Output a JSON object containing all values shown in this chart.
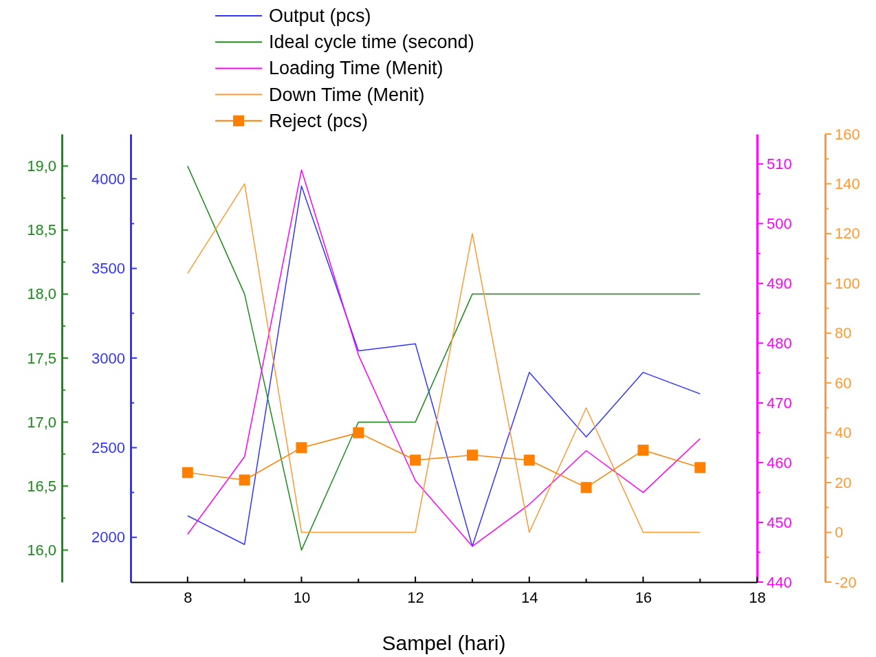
{
  "chart_data": [
    {
      "type": "line",
      "xlabel": "Sampel (hari)",
      "x": [
        8,
        9,
        10,
        11,
        12,
        13,
        14,
        15,
        16,
        17
      ],
      "xlim": [
        7,
        18
      ],
      "xticks": [
        8,
        10,
        12,
        14,
        16,
        18
      ],
      "ylim": [
        1750,
        4250
      ],
      "yticks": [
        2000,
        2500,
        3000,
        3500,
        4000
      ],
      "y2lim": [
        15.75,
        19.25
      ],
      "y2ticks": [
        {
          "value": 16,
          "label": "16,0"
        },
        {
          "value": 16.5,
          "label": "16,5"
        },
        {
          "value": 17,
          "label": "17,0"
        },
        {
          "value": 17.5,
          "label": "17,5"
        },
        {
          "value": 18,
          "label": "18,0"
        },
        {
          "value": 18.5,
          "label": "18,5"
        },
        {
          "value": 19,
          "label": "19,0"
        }
      ],
      "y3lim": [
        440,
        515
      ],
      "y3ticks": [
        440,
        450,
        460,
        470,
        480,
        490,
        500,
        510
      ],
      "legend": "top",
      "series": [
        {
          "name": "Output (pcs)",
          "color": "#3333ff",
          "marker": "none",
          "values": [
            2120,
            1960,
            3960,
            3040,
            3080,
            1950,
            2920,
            2560,
            2920,
            2800
          ]
        },
        {
          "name": "Ideal cycle time (second)",
          "color": "#1a8c1a",
          "axis": "y2",
          "marker": "none",
          "values": [
            19.0,
            18.0,
            16.0,
            17.0,
            17.0,
            18.0,
            18.0,
            18.0,
            18.0,
            18.0
          ]
        },
        {
          "name": "Loading Time (Menit)",
          "color": "#ff00ff",
          "axis": "y3",
          "marker": "none",
          "values": [
            448,
            461,
            509,
            478,
            457,
            446,
            453,
            462,
            455,
            464
          ]
        }
      ]
    },
    {
      "type": "line",
      "x": [
        8,
        9,
        10,
        11,
        12,
        13,
        14,
        15,
        16,
        17
      ],
      "xlim": [
        7,
        18
      ],
      "tick_labels": "y",
      "ylim": [
        -20,
        160
      ],
      "yticks": [
        -20,
        0,
        20,
        40,
        60,
        80,
        100,
        120,
        140,
        160
      ],
      "legend": "top",
      "series": [
        {
          "name": "Down Time (Menit)",
          "color": "#ff9933",
          "marker": "none",
          "values": [
            104,
            140,
            0,
            0,
            0,
            120,
            0,
            50,
            0,
            0
          ]
        },
        {
          "name": "Reject (pcs)",
          "color": "#ff8000",
          "marker": "square",
          "values": [
            24,
            21,
            34,
            40,
            29,
            31,
            29,
            18,
            33,
            26
          ]
        }
      ]
    }
  ]
}
